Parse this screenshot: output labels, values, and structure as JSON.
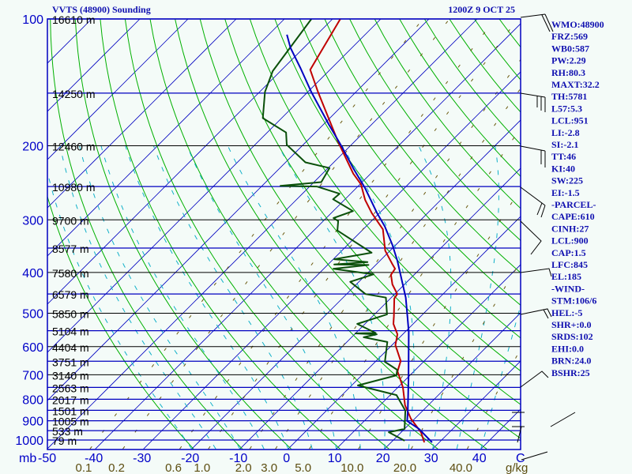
{
  "header": {
    "title": "VVTS (48900) Sounding",
    "datetime": "1200Z  9 OCT 25"
  },
  "indices": [
    "WMO:48900",
    "FRZ:569",
    "WB0:587",
    "PW:2.29",
    "RH:80.3",
    "MAXT:32.2",
    "TH:5781",
    "L57:5.3",
    "LCL:951",
    "LI:-2.8",
    "SI:-2.1",
    "TT:46",
    "KI:40",
    "SW:225",
    "EI:-1.5",
    "-PARCEL-",
    "CAPE:610",
    "CINH:27",
    "LCL:900",
    "CAP:1.5",
    "LFC:845",
    "EL:185",
    "-WIND-",
    "STM:106/6",
    "HEL:-5",
    "SHR+:0.0",
    "SRDS:102",
    "EHI:0.0",
    "BRN:24.0",
    "BSHR:25"
  ],
  "colors": {
    "temperature": "#c00000",
    "dewpoint": "#0a500a",
    "parcel": "#0000c0",
    "isotherm": "#0000c0",
    "dry_adiabat": "#00b000",
    "moist_adiabat": "#10b0c8",
    "mixing_ratio": "#6b5a10",
    "text": "#1010b0"
  },
  "chart_data": {
    "type": "line",
    "title": "VVTS (48900) Sounding",
    "subtitle": "1200Z  9 OCT 25",
    "diagram": "skew-T log-p",
    "pressure_axis": {
      "unit_label": "mb",
      "ticks": [
        "100",
        "200",
        "300",
        "400",
        "500",
        "600",
        "700",
        "800",
        "900",
        "1000"
      ],
      "range": [
        1050,
        100
      ]
    },
    "temperature_axis": {
      "unit_label": "C",
      "ticks": [
        -50,
        -40,
        -30,
        -20,
        -10,
        0,
        10,
        20,
        30,
        40
      ],
      "tick_labels": [
        "-50",
        "-40",
        "-30",
        "-20",
        "-10",
        "0",
        "10",
        "20",
        "30",
        "40"
      ],
      "range_at_bottom": [
        -50,
        50
      ]
    },
    "mixing_ratio": {
      "values": [
        0.1,
        0.2,
        0.6,
        1.0,
        2.0,
        3.0,
        5.0,
        10.0,
        20.0,
        40.0
      ],
      "labels": [
        "0.1",
        "0.2",
        "0.6",
        "1.0",
        "2.0",
        "3.0",
        "5.0",
        "10.0",
        "20.0",
        "40.0"
      ],
      "unit_label": "g/kg"
    },
    "height_levels": [
      {
        "p": 100,
        "label": "16610 m"
      },
      {
        "p": 150,
        "label": "14250 m"
      },
      {
        "p": 200,
        "label": "12460 m"
      },
      {
        "p": 250,
        "label": "10980 m"
      },
      {
        "p": 300,
        "label": "9700 m"
      },
      {
        "p": 350,
        "label": "8577 m"
      },
      {
        "p": 400,
        "label": "7580 m"
      },
      {
        "p": 450,
        "label": "6579 m"
      },
      {
        "p": 500,
        "label": "5850 m"
      },
      {
        "p": 550,
        "label": "5104 m"
      },
      {
        "p": 600,
        "label": "4404 m"
      },
      {
        "p": 650,
        "label": "3751 m"
      },
      {
        "p": 700,
        "label": "3140 m"
      },
      {
        "p": 750,
        "label": "2563 m"
      },
      {
        "p": 800,
        "label": "2017 m"
      },
      {
        "p": 850,
        "label": "1501 m"
      },
      {
        "p": 900,
        "label": "1005 m"
      },
      {
        "p": 950,
        "label": "533 m"
      },
      {
        "p": 1000,
        "label": "79 m"
      }
    ],
    "series": [
      {
        "name": "Temperature",
        "points": [
          [
            100,
            -78.4
          ],
          [
            132,
            -74.1
          ],
          [
            149,
            -67.9
          ],
          [
            196,
            -53.3
          ],
          [
            233,
            -43.6
          ],
          [
            247,
            -39.8
          ],
          [
            269,
            -35.7
          ],
          [
            289,
            -31.6
          ],
          [
            316,
            -25.9
          ],
          [
            355,
            -21.0
          ],
          [
            383,
            -16.6
          ],
          [
            392,
            -15.2
          ],
          [
            405,
            -14.8
          ],
          [
            427,
            -12.5
          ],
          [
            450,
            -9.5
          ],
          [
            461,
            -9.2
          ],
          [
            508,
            -5.6
          ],
          [
            530,
            -4.1
          ],
          [
            561,
            -1.1
          ],
          [
            595,
            0.7
          ],
          [
            649,
            5.1
          ],
          [
            687,
            6.6
          ],
          [
            749,
            11.0
          ],
          [
            827,
            15.2
          ],
          [
            890,
            19.2
          ],
          [
            958,
            24.1
          ],
          [
            1013,
            26.9
          ]
        ]
      },
      {
        "name": "Dewpoint",
        "points": [
          [
            100,
            -84.4
          ],
          [
            133,
            -81.6
          ],
          [
            149,
            -78.9
          ],
          [
            172,
            -73.9
          ],
          [
            186,
            -66.1
          ],
          [
            199,
            -63.4
          ],
          [
            219,
            -55.9
          ],
          [
            226,
            -49.7
          ],
          [
            244,
            -48.5
          ],
          [
            249,
            -56.2
          ],
          [
            250,
            -48.5
          ],
          [
            260,
            -42.3
          ],
          [
            268,
            -42.5
          ],
          [
            286,
            -35.9
          ],
          [
            297,
            -38.5
          ],
          [
            302,
            -36.9
          ],
          [
            318,
            -35.1
          ],
          [
            359,
            -23.4
          ],
          [
            372,
            -29.8
          ],
          [
            378,
            -22.3
          ],
          [
            383,
            -28.7
          ],
          [
            384,
            -21.5
          ],
          [
            392,
            -28.0
          ],
          [
            404,
            -18.5
          ],
          [
            421,
            -21.8
          ],
          [
            450,
            -16.1
          ],
          [
            459,
            -11.1
          ],
          [
            503,
            -7.4
          ],
          [
            530,
            -11.6
          ],
          [
            557,
            -5.9
          ],
          [
            558,
            -10.0
          ],
          [
            561,
            -5.4
          ],
          [
            570,
            -7.5
          ],
          [
            585,
            -1.6
          ],
          [
            652,
            2.0
          ],
          [
            681,
            6.2
          ],
          [
            702,
            7.2
          ],
          [
            742,
            1.3
          ],
          [
            782,
            11.3
          ],
          [
            852,
            16.4
          ],
          [
            941,
            20.0
          ],
          [
            958,
            17.4
          ],
          [
            1004,
            22.5
          ]
        ]
      },
      {
        "name": "Parcel",
        "points": [
          [
            109,
            -86.2
          ],
          [
            117,
            -82.8
          ],
          [
            131,
            -76.4
          ],
          [
            149,
            -69.3
          ],
          [
            178,
            -58.9
          ],
          [
            202,
            -51.3
          ],
          [
            226,
            -44.8
          ],
          [
            252,
            -38.2
          ],
          [
            289,
            -30.5
          ],
          [
            311,
            -26.1
          ],
          [
            344,
            -20.7
          ],
          [
            375,
            -16.4
          ],
          [
            414,
            -11.8
          ],
          [
            459,
            -7.0
          ],
          [
            508,
            -2.8
          ],
          [
            553,
            0.7
          ],
          [
            717,
            10.5
          ],
          [
            852,
            16.9
          ],
          [
            901,
            18.9
          ],
          [
            941,
            23.0
          ],
          [
            1013,
            28.5
          ]
        ]
      }
    ]
  }
}
